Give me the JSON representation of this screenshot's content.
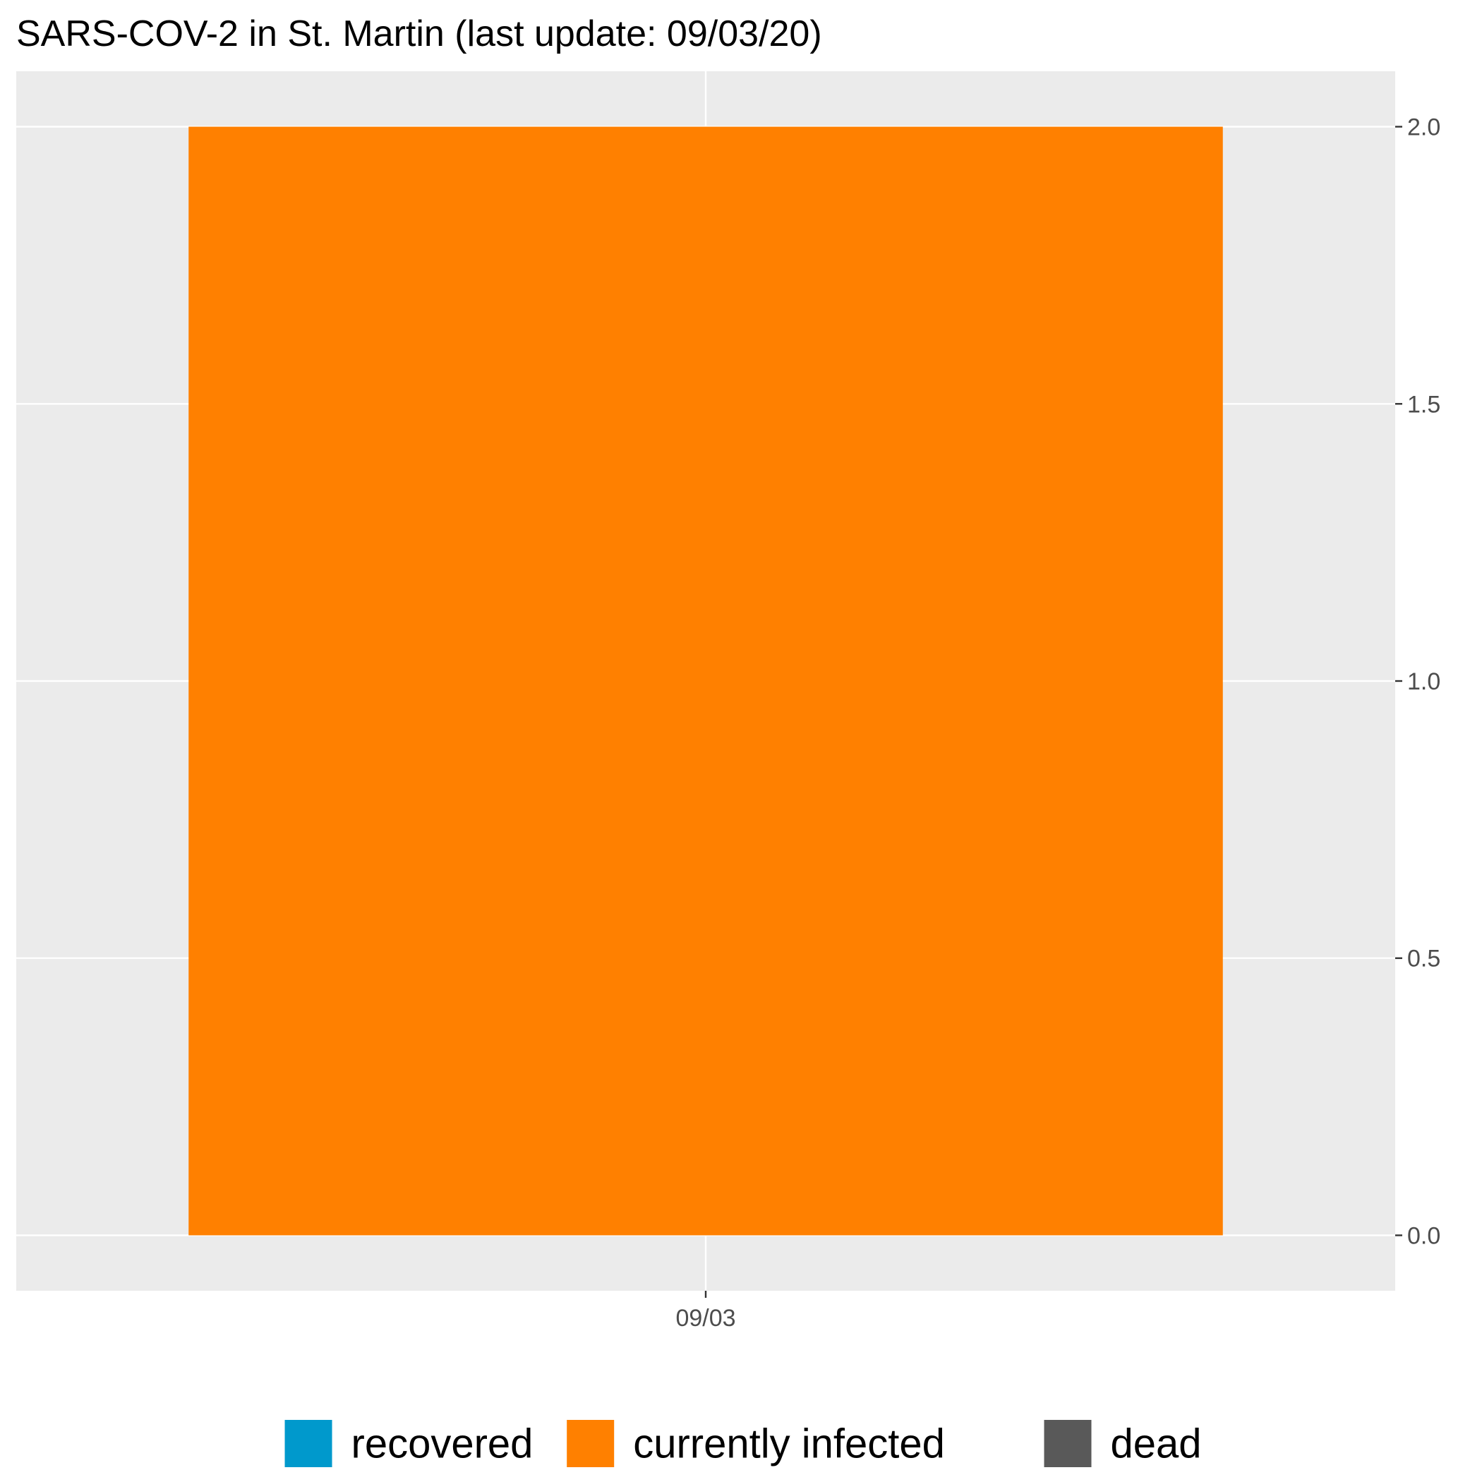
{
  "chart_data": {
    "type": "bar",
    "title": "SARS-COV-2 in St. Martin (last update: 09/03/20)",
    "xlabel": "",
    "ylabel": "",
    "categories": [
      "09/03"
    ],
    "series": [
      {
        "name": "recovered",
        "color": "#0099CC",
        "values": [
          0
        ]
      },
      {
        "name": "currently infected",
        "color": "#FF8000",
        "values": [
          2
        ]
      },
      {
        "name": "dead",
        "color": "#595959",
        "values": [
          0
        ]
      }
    ],
    "stacked": true,
    "ylim": [
      -0.1,
      2.1
    ],
    "yticks": [
      0.0,
      0.5,
      1.0,
      1.5,
      2.0
    ],
    "ytick_labels": [
      "0.0",
      "0.5",
      "1.0",
      "1.5",
      "2.0"
    ],
    "y_axis_position": "right",
    "grid": true,
    "panel_background": "#EBEBEB",
    "legend_position": "bottom"
  }
}
